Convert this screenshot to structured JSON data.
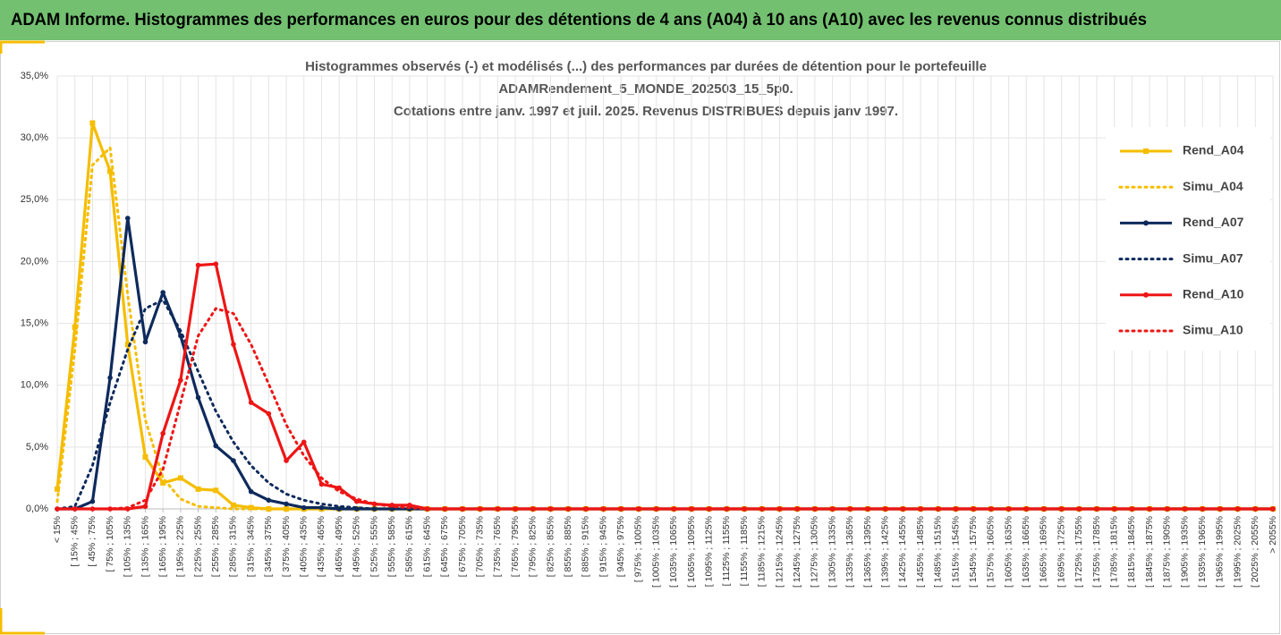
{
  "header": {
    "title": "ADAM Informe. Histogrammes des performances en euros pour des détentions de 4 ans (A04) à 10 ans (A10) avec les revenus connus distribués"
  },
  "chart_data": {
    "type": "line",
    "title": [
      "Histogrammes observés (-) et modélisés (...) des performances par durées de détention pour le portefeuille",
      "ADAMRendement_5_MONDE_202503_15_5p0.",
      "Cotations entre janv. 1997 et juil. 2025. Revenus DISTRIBUES depuis janv 1997."
    ],
    "categories": [
      "< 15%",
      "[ 15% ; 45%",
      "[ 45% ; 75%",
      "[ 75% ; 105%",
      "[ 105% ; 135%",
      "[ 135% ; 165%",
      "[ 165% ; 195%",
      "[ 195% ; 225%",
      "[ 225% ; 255%",
      "[ 255% ; 285%",
      "[ 285% ; 315%",
      "[ 315% ; 345%",
      "[ 345% ; 375%",
      "[ 375% ; 405%",
      "[ 405% ; 435%",
      "[ 435% ; 465%",
      "[ 465% ; 495%",
      "[ 495% ; 525%",
      "[ 525% ; 555%",
      "[ 555% ; 585%",
      "[ 585% ; 615%",
      "[ 615% ; 645%",
      "[ 645% ; 675%",
      "[ 675% ; 705%",
      "[ 705% ; 735%",
      "[ 735% ; 765%",
      "[ 765% ; 795%",
      "[ 795% ; 825%",
      "[ 825% ; 855%",
      "[ 855% ; 885%",
      "[ 885% ; 915%",
      "[ 915% ; 945%",
      "[ 945% ; 975%",
      "[ 975% ; 1005%",
      "[ 1005% ; 1035%",
      "[ 1035% ; 1065%",
      "[ 1065% ; 1095%",
      "[ 1095% ; 1125%",
      "[ 1125% ; 1155%",
      "[ 1155% ; 1185%",
      "[ 1185% ; 1215%",
      "[ 1215% ; 1245%",
      "[ 1245% ; 1275%",
      "[ 1275% ; 1305%",
      "[ 1305% ; 1335%",
      "[ 1335% ; 1365%",
      "[ 1365% ; 1395%",
      "[ 1395% ; 1425%",
      "[ 1425% ; 1455%",
      "[ 1455% ; 1485%",
      "[ 1485% ; 1515%",
      "[ 1515% ; 1545%",
      "[ 1545% ; 1575%",
      "[ 1575% ; 1605%",
      "[ 1605% ; 1635%",
      "[ 1635% ; 1665%",
      "[ 1665% ; 1695%",
      "[ 1695% ; 1725%",
      "[ 1725% ; 1755%",
      "[ 1755% ; 1785%",
      "[ 1785% ; 1815%",
      "[ 1815% ; 1845%",
      "[ 1845% ; 1875%",
      "[ 1875% ; 1905%",
      "[ 1905% ; 1935%",
      "[ 1935% ; 1965%",
      "[ 1965% ; 1995%",
      "[ 1995% ; 2025%",
      "[ 2025% ; 2055%",
      "> 2055%"
    ],
    "series": [
      {
        "name": "Rend_A04",
        "color": "#f5bd00",
        "dash": "solid",
        "marker": "square",
        "values": [
          1.6,
          14.7,
          31.2,
          27.3,
          13.3,
          4.2,
          2.1,
          2.5,
          1.6,
          1.5,
          0.3,
          0.1,
          0,
          0,
          0,
          0,
          0,
          0,
          0,
          0,
          0,
          0,
          0,
          0,
          0,
          0,
          0,
          0,
          0,
          0,
          0,
          0,
          0,
          0,
          0,
          0,
          0,
          0,
          0,
          0,
          0,
          0,
          0,
          0,
          0,
          0,
          0,
          0,
          0,
          0,
          0,
          0,
          0,
          0,
          0,
          0,
          0,
          0,
          0,
          0,
          0,
          0,
          0,
          0,
          0,
          0,
          0,
          0,
          0,
          0
        ]
      },
      {
        "name": "Simu_A04",
        "color": "#f5bd00",
        "dash": "dotted",
        "marker": "none",
        "values": [
          0.6,
          12.9,
          27.8,
          29.2,
          17.3,
          7.2,
          2.5,
          0.8,
          0.2,
          0.1,
          0,
          0,
          0,
          0,
          0,
          0,
          0,
          0,
          0,
          0,
          0,
          0,
          0,
          0,
          0,
          0,
          0,
          0,
          0,
          0,
          0,
          0,
          0,
          0,
          0,
          0,
          0,
          0,
          0,
          0,
          0,
          0,
          0,
          0,
          0,
          0,
          0,
          0,
          0,
          0,
          0,
          0,
          0,
          0,
          0,
          0,
          0,
          0,
          0,
          0,
          0,
          0,
          0,
          0,
          0,
          0,
          0,
          0,
          0,
          0
        ]
      },
      {
        "name": "Rend_A07",
        "color": "#0e2a5c",
        "dash": "solid",
        "marker": "circle",
        "values": [
          0,
          0,
          0.6,
          10.6,
          23.5,
          13.5,
          17.5,
          14.0,
          9.0,
          5.1,
          3.9,
          1.4,
          0.7,
          0.4,
          0.1,
          0.1,
          0,
          0,
          0,
          0,
          0,
          0,
          0,
          0,
          0,
          0,
          0,
          0,
          0,
          0,
          0,
          0,
          0,
          0,
          0,
          0,
          0,
          0,
          0,
          0,
          0,
          0,
          0,
          0,
          0,
          0,
          0,
          0,
          0,
          0,
          0,
          0,
          0,
          0,
          0,
          0,
          0,
          0,
          0,
          0,
          0,
          0,
          0,
          0,
          0,
          0,
          0,
          0,
          0,
          0
        ]
      },
      {
        "name": "Simu_A07",
        "color": "#0e2a5c",
        "dash": "dotted",
        "marker": "none",
        "values": [
          0,
          0.2,
          3.5,
          8.6,
          12.9,
          16.2,
          16.9,
          14.4,
          11.1,
          7.9,
          5.4,
          3.5,
          2.1,
          1.2,
          0.7,
          0.4,
          0.2,
          0.1,
          0,
          0,
          0,
          0,
          0,
          0,
          0,
          0,
          0,
          0,
          0,
          0,
          0,
          0,
          0,
          0,
          0,
          0,
          0,
          0,
          0,
          0,
          0,
          0,
          0,
          0,
          0,
          0,
          0,
          0,
          0,
          0,
          0,
          0,
          0,
          0,
          0,
          0,
          0,
          0,
          0,
          0,
          0,
          0,
          0,
          0,
          0,
          0,
          0,
          0,
          0,
          0
        ]
      },
      {
        "name": "Rend_A10",
        "color": "#ee1515",
        "dash": "solid",
        "marker": "circle",
        "values": [
          0,
          0,
          0,
          0,
          0,
          0.2,
          6.1,
          10.4,
          19.7,
          19.8,
          13.3,
          8.6,
          7.7,
          3.9,
          5.4,
          2.0,
          1.7,
          0.6,
          0.4,
          0.3,
          0.3,
          0,
          0,
          0,
          0,
          0,
          0,
          0,
          0,
          0,
          0,
          0,
          0,
          0,
          0,
          0,
          0,
          0,
          0,
          0,
          0,
          0,
          0,
          0,
          0,
          0,
          0,
          0,
          0,
          0,
          0,
          0,
          0,
          0,
          0,
          0,
          0,
          0,
          0,
          0,
          0,
          0,
          0,
          0,
          0,
          0,
          0,
          0,
          0,
          0
        ]
      },
      {
        "name": "Simu_A10",
        "color": "#ee1515",
        "dash": "dotted",
        "marker": "none",
        "values": [
          0,
          0,
          0,
          0,
          0.1,
          0.7,
          3.2,
          8.6,
          14.0,
          16.2,
          15.8,
          13.3,
          10.1,
          6.8,
          4.3,
          2.5,
          1.4,
          0.8,
          0.4,
          0.2,
          0.1,
          0,
          0,
          0,
          0,
          0,
          0,
          0,
          0,
          0,
          0,
          0,
          0,
          0,
          0,
          0,
          0,
          0,
          0,
          0,
          0,
          0,
          0,
          0,
          0,
          0,
          0,
          0,
          0,
          0,
          0,
          0,
          0,
          0,
          0,
          0,
          0,
          0,
          0,
          0,
          0,
          0,
          0,
          0,
          0,
          0,
          0,
          0,
          0,
          0
        ]
      }
    ],
    "ylim": [
      0,
      35
    ],
    "yticks": [
      {
        "value": 0,
        "label": "0,0%"
      },
      {
        "value": 5,
        "label": "5,0%"
      },
      {
        "value": 10,
        "label": "10,0%"
      },
      {
        "value": 15,
        "label": "15,0%"
      },
      {
        "value": 20,
        "label": "20,0%"
      },
      {
        "value": 25,
        "label": "25,0%"
      },
      {
        "value": 30,
        "label": "30,0%"
      },
      {
        "value": 35,
        "label": "35,0%"
      }
    ],
    "grid": true,
    "legend": "right"
  }
}
